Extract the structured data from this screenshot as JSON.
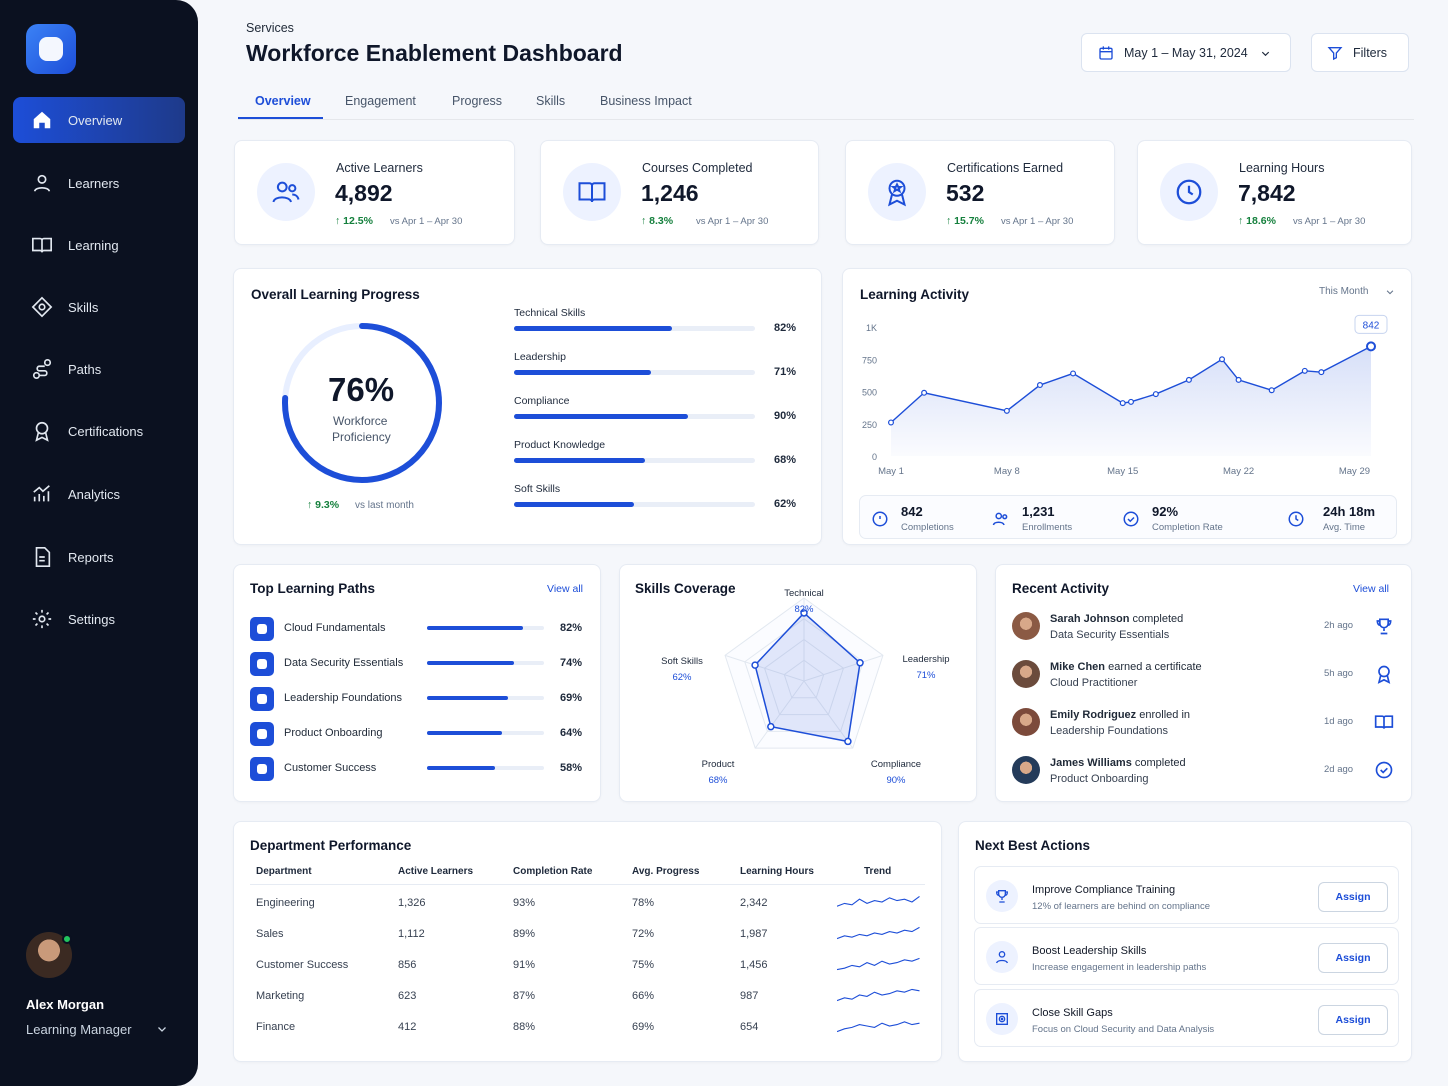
{
  "sidebar": {
    "items": [
      {
        "label": "Overview",
        "icon": "home-icon",
        "active": true
      },
      {
        "label": "Learners",
        "icon": "user-icon"
      },
      {
        "label": "Learning",
        "icon": "book-icon"
      },
      {
        "label": "Skills",
        "icon": "diamond-icon"
      },
      {
        "label": "Paths",
        "icon": "path-icon"
      },
      {
        "label": "Certifications",
        "icon": "certificate-icon"
      },
      {
        "label": "Analytics",
        "icon": "analytics-icon"
      },
      {
        "label": "Reports",
        "icon": "report-icon"
      },
      {
        "label": "Settings",
        "icon": "settings-icon"
      }
    ],
    "user": {
      "name": "Alex Morgan",
      "role": "Learning Manager"
    }
  },
  "header": {
    "breadcrumb": "Services",
    "title": "Workforce Enablement Dashboard",
    "date_range": "May 1 – May 31, 2024",
    "filters": "Filters"
  },
  "tabs": [
    "Overview",
    "Engagement",
    "Progress",
    "Skills",
    "Business Impact"
  ],
  "kpis": [
    {
      "label": "Active Learners",
      "value": "4,892",
      "delta": "12.5%",
      "compare": "vs Apr 1 – Apr 30",
      "icon": "users-icon"
    },
    {
      "label": "Courses Completed",
      "value": "1,246",
      "delta": "8.3%",
      "compare": "vs Apr 1 – Apr 30",
      "icon": "book-icon"
    },
    {
      "label": "Certifications Earned",
      "value": "532",
      "delta": "15.7%",
      "compare": "vs Apr 1 – Apr 30",
      "icon": "award-icon"
    },
    {
      "label": "Learning Hours",
      "value": "7,842",
      "delta": "18.6%",
      "compare": "vs Apr 1 – Apr 30",
      "icon": "clock-icon"
    }
  ],
  "progress": {
    "title": "Overall Learning Progress",
    "percent_text": "76%",
    "percent": 76,
    "caption_1": "Workforce",
    "caption_2": "Proficiency",
    "change": "9.3%",
    "change_label": "vs last month",
    "skills": [
      {
        "label": "Technical Skills",
        "value_text": "82%",
        "value": 82
      },
      {
        "label": "Leadership",
        "value_text": "71%",
        "value": 71
      },
      {
        "label": "Compliance",
        "value_text": "90%",
        "value": 90
      },
      {
        "label": "Product Knowledge",
        "value_text": "68%",
        "value": 68
      },
      {
        "label": "Soft Skills",
        "value_text": "62%",
        "value": 62
      }
    ]
  },
  "activity": {
    "title": "Learning Activity",
    "period": "This Month",
    "highlight": "842",
    "y_ticks": [
      "1K",
      "750",
      "500",
      "250",
      "0"
    ],
    "x_ticks": [
      "May 1",
      "May 8",
      "May 15",
      "May 22",
      "May 29"
    ],
    "stats": [
      {
        "value": "842",
        "label": "Completions",
        "icon": "check-circle-icon"
      },
      {
        "value": "1,231",
        "label": "Enrollments",
        "icon": "users-icon"
      },
      {
        "value": "92%",
        "label": "Completion Rate",
        "icon": "check-circle-icon"
      },
      {
        "value": "24h 18m",
        "label": "Avg. Time",
        "icon": "clock-icon"
      }
    ]
  },
  "chart_data": {
    "type": "line",
    "title": "Learning Activity",
    "x": [
      1,
      3,
      8,
      10,
      12,
      15,
      15.5,
      17,
      19,
      21,
      22,
      24,
      26,
      27,
      30
    ],
    "values": [
      260,
      490,
      350,
      550,
      640,
      410,
      420,
      480,
      590,
      750,
      590,
      510,
      660,
      650,
      850
    ],
    "xticks": [
      "May 1",
      "May 8",
      "May 15",
      "May 22",
      "May 29"
    ],
    "yticks": [
      "0",
      "250",
      "500",
      "750",
      "1K"
    ],
    "ylim": [
      0,
      1000
    ],
    "grid": false,
    "highlight_label": "842"
  },
  "top_paths": {
    "title": "Top Learning Paths",
    "view_all": "View all",
    "items": [
      {
        "label": "Cloud Fundamentals",
        "value_text": "82%",
        "value": 82
      },
      {
        "label": "Data Security Essentials",
        "value_text": "74%",
        "value": 74
      },
      {
        "label": "Leadership Foundations",
        "value_text": "69%",
        "value": 69
      },
      {
        "label": "Product Onboarding",
        "value_text": "64%",
        "value": 64
      },
      {
        "label": "Customer Success",
        "value_text": "58%",
        "value": 58
      }
    ]
  },
  "skills_coverage": {
    "title": "Skills Coverage",
    "axes": [
      {
        "label": "Technical",
        "value_text": "82%",
        "value": 82
      },
      {
        "label": "Leadership",
        "value_text": "71%",
        "value": 71
      },
      {
        "label": "Compliance",
        "value_text": "90%",
        "value": 90
      },
      {
        "label": "Product",
        "value_text": "68%",
        "value": 68
      },
      {
        "label": "Soft Skills",
        "value_text": "62%",
        "value": 62
      }
    ]
  },
  "recent_activity": {
    "title": "Recent Activity",
    "view_all": "View all",
    "items": [
      {
        "name": "Sarah Johnson",
        "action": "completed",
        "course": "Data Security Essentials",
        "time": "2h ago",
        "icon": "trophy-icon"
      },
      {
        "name": "Mike Chen",
        "action": "earned a certificate",
        "course": "Cloud Practitioner",
        "time": "5h ago",
        "icon": "award-icon"
      },
      {
        "name": "Emily Rodriguez",
        "action": "enrolled in",
        "course": "Leadership Foundations",
        "time": "1d ago",
        "icon": "book-icon"
      },
      {
        "name": "James Williams",
        "action": "completed",
        "course": "Product Onboarding",
        "time": "2d ago",
        "icon": "check-circle-icon"
      }
    ]
  },
  "department": {
    "title": "Department Performance",
    "headers": [
      "Department",
      "Active Learners",
      "Completion Rate",
      "Avg. Progress",
      "Learning Hours",
      "Trend"
    ],
    "rows": [
      [
        "Engineering",
        "1,326",
        "93%",
        "78%",
        "2,342"
      ],
      [
        "Sales",
        "1,112",
        "89%",
        "72%",
        "1,987"
      ],
      [
        "Customer Success",
        "856",
        "91%",
        "75%",
        "1,456"
      ],
      [
        "Marketing",
        "623",
        "87%",
        "66%",
        "987"
      ],
      [
        "Finance",
        "412",
        "88%",
        "69%",
        "654"
      ]
    ]
  },
  "next_actions": {
    "title": "Next Best Actions",
    "items": [
      {
        "title": "Improve Compliance Training",
        "subtitle": "12% of learners are behind on compliance",
        "button": "Assign",
        "icon": "trophy-icon"
      },
      {
        "title": "Boost Leadership Skills",
        "subtitle": "Increase engagement in leadership paths",
        "button": "Assign",
        "icon": "leadership-icon"
      },
      {
        "title": "Close Skill Gaps",
        "subtitle": "Focus on Cloud Security and Data Analysis",
        "button": "Assign",
        "icon": "target-icon"
      }
    ]
  },
  "colors": {
    "primary": "#1d4ed8",
    "sidebar": "#0b1120",
    "success": "#15803d"
  }
}
